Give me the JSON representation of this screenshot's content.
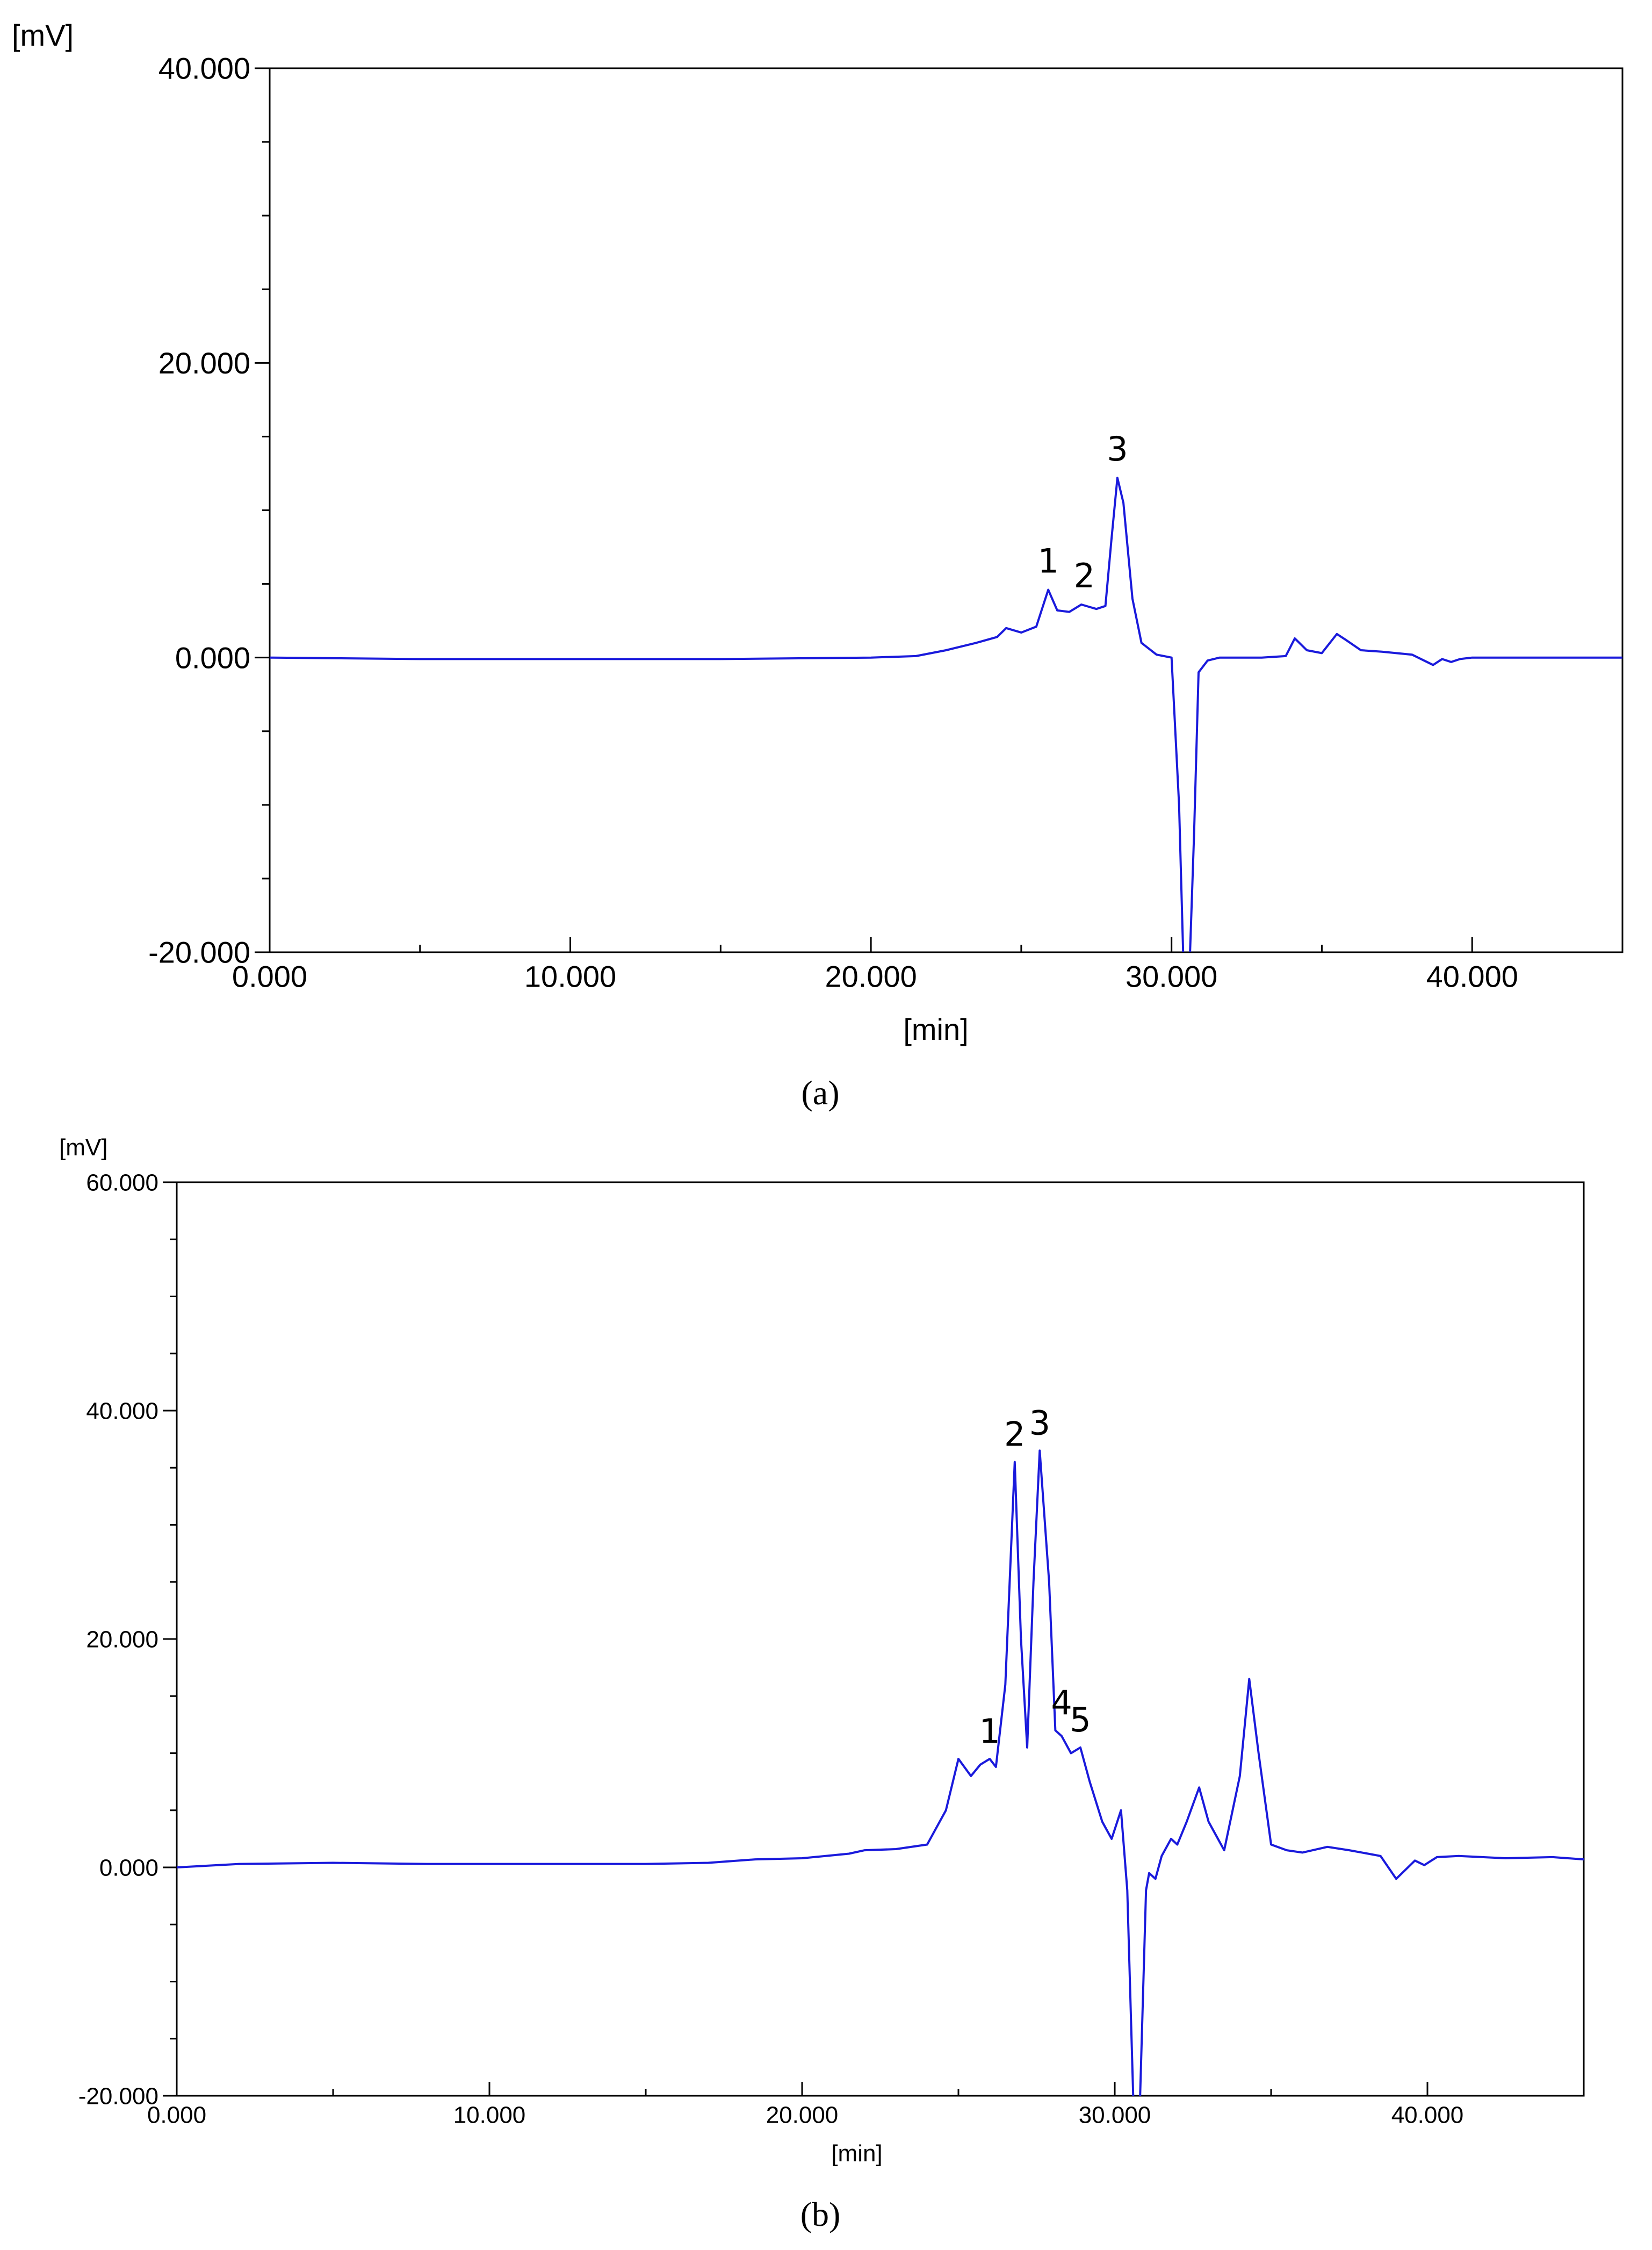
{
  "colors": {
    "trace": "#1a1adc",
    "axis": "#000000",
    "background": "#ffffff"
  },
  "chart_data": [
    {
      "type": "line",
      "panel_label": "(a)",
      "ylabel": "[mV]",
      "xlabel": "[min]",
      "xlim": [
        0,
        45
      ],
      "ylim": [
        -20,
        40
      ],
      "x_ticks": [
        "0.000",
        "10.000",
        "20.000",
        "30.000",
        "40.000"
      ],
      "y_ticks": [
        "-20.000",
        "0.000",
        "20.000",
        "40.000"
      ],
      "grid": false,
      "annotations": [
        {
          "text": "1",
          "x": 25.9,
          "y": 4.6
        },
        {
          "text": "2",
          "x": 27.1,
          "y": 3.6
        },
        {
          "text": "3",
          "x": 28.2,
          "y": 12.2
        }
      ],
      "series": [
        {
          "x": [
            0,
            5,
            10,
            15,
            20,
            21.5,
            22.5,
            23.5,
            24.2,
            24.5,
            25.0,
            25.5,
            25.9,
            26.2,
            26.6,
            27.0,
            27.5,
            27.8,
            28.0,
            28.2,
            28.4,
            28.7,
            29.0,
            29.5,
            30.0,
            30.25,
            30.4,
            30.6,
            30.75,
            30.9,
            31.2,
            31.6,
            32.0,
            33.0,
            33.8,
            34.1,
            34.5,
            35.0,
            35.5,
            35.8,
            36.3,
            37.0,
            38.0,
            38.7,
            39.0,
            39.3,
            39.6,
            40.0,
            41.0,
            42.5,
            44.0,
            45.0
          ],
          "y": [
            0,
            -0.1,
            -0.1,
            -0.1,
            0,
            0.1,
            0.5,
            1.0,
            1.4,
            2.0,
            1.7,
            2.1,
            4.6,
            3.2,
            3.1,
            3.6,
            3.3,
            3.5,
            8.0,
            12.2,
            10.5,
            4.0,
            1.0,
            0.2,
            0,
            -10,
            -21,
            -21,
            -12,
            -1.0,
            -0.2,
            0,
            0,
            0,
            0.1,
            1.3,
            0.5,
            0.3,
            1.6,
            1.2,
            0.5,
            0.4,
            0.2,
            -0.5,
            -0.1,
            -0.3,
            -0.1,
            0,
            0,
            0,
            0,
            0
          ]
        }
      ]
    },
    {
      "type": "line",
      "panel_label": "(b)",
      "ylabel": "[mV]",
      "xlabel": "[min]",
      "xlim": [
        0,
        45
      ],
      "ylim": [
        -20,
        60
      ],
      "x_ticks": [
        "0.000",
        "10.000",
        "20.000",
        "30.000",
        "40.000"
      ],
      "y_ticks": [
        "-20.000",
        "0.000",
        "20.000",
        "40.000",
        "60.000"
      ],
      "grid": false,
      "annotations": [
        {
          "text": "1",
          "x": 26.0,
          "y": 9.5
        },
        {
          "text": "2",
          "x": 26.8,
          "y": 35.5
        },
        {
          "text": "3",
          "x": 27.6,
          "y": 36.5
        },
        {
          "text": "4",
          "x": 28.3,
          "y": 12.0
        },
        {
          "text": "5",
          "x": 28.9,
          "y": 10.5
        }
      ],
      "series": [
        {
          "x": [
            0,
            2,
            5,
            8,
            10,
            12,
            15,
            17,
            18.5,
            20,
            21.5,
            22,
            23,
            24,
            24.6,
            25.0,
            25.4,
            25.7,
            26.0,
            26.2,
            26.5,
            26.8,
            27.0,
            27.2,
            27.4,
            27.6,
            27.9,
            28.1,
            28.3,
            28.6,
            28.9,
            29.2,
            29.6,
            29.9,
            30.2,
            30.4,
            30.6,
            30.8,
            31.0,
            31.1,
            31.3,
            31.5,
            31.8,
            32.0,
            32.3,
            32.7,
            33.0,
            33.5,
            34.0,
            34.3,
            34.6,
            35.0,
            35.5,
            36.0,
            36.8,
            37.5,
            38.5,
            39.0,
            39.3,
            39.6,
            39.9,
            40.3,
            41.0,
            42.5,
            44.0,
            45.0
          ],
          "y": [
            0,
            0.3,
            0.4,
            0.3,
            0.3,
            0.3,
            0.3,
            0.4,
            0.7,
            0.8,
            1.2,
            1.5,
            1.6,
            2.0,
            5.0,
            9.5,
            8.0,
            9.0,
            9.5,
            8.8,
            16.0,
            35.5,
            20.0,
            10.5,
            25.0,
            36.5,
            25.0,
            12.0,
            11.5,
            10.0,
            10.5,
            7.5,
            4.0,
            2.5,
            5.0,
            -2.0,
            -21.0,
            -21.0,
            -2.0,
            -0.5,
            -1.0,
            1.0,
            2.5,
            2.0,
            4.0,
            7.0,
            4.0,
            1.5,
            8.0,
            16.5,
            10.0,
            2.0,
            1.5,
            1.3,
            1.8,
            1.5,
            1.0,
            -1.0,
            -0.2,
            0.6,
            0.2,
            0.9,
            1.0,
            0.8,
            0.9,
            0.7
          ]
        }
      ]
    }
  ]
}
